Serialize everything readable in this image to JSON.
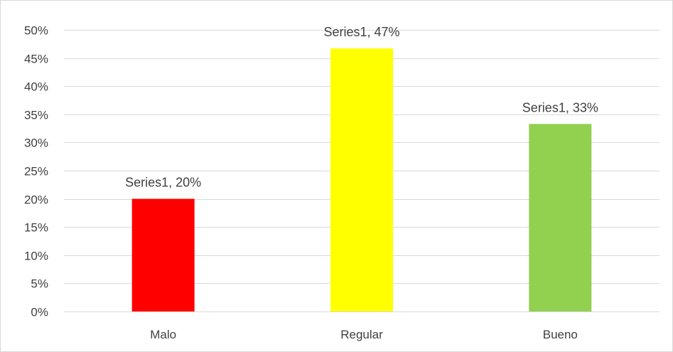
{
  "chart_data": {
    "type": "bar",
    "categories": [
      "Malo",
      "Regular",
      "Bueno"
    ],
    "series": [
      {
        "name": "Series1",
        "values": [
          0.2,
          0.467,
          0.333
        ]
      }
    ],
    "bar_colors": [
      "#ff0000",
      "#ffff00",
      "#92d050"
    ],
    "data_labels": [
      "Series1, 20%",
      "Series1, 47%",
      "Series1, 33%"
    ],
    "y_ticks": [
      "0%",
      "5%",
      "10%",
      "15%",
      "20%",
      "25%",
      "30%",
      "35%",
      "40%",
      "45%",
      "50%"
    ],
    "ylim": [
      0,
      0.5
    ],
    "grid": true,
    "legend": "none",
    "title": "",
    "xlabel": "",
    "ylabel": ""
  }
}
